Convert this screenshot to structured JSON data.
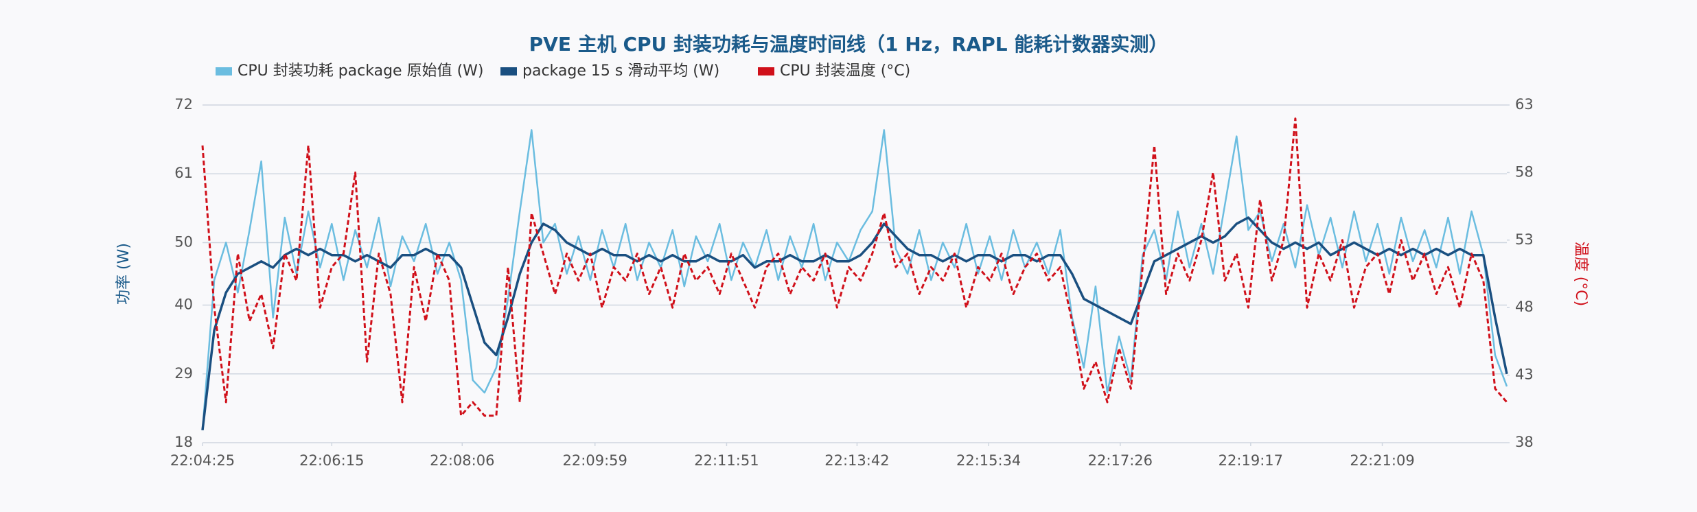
{
  "chart_data": {
    "type": "line",
    "title": "PVE 主机 CPU 封装功耗与温度时间线（1 Hz，RAPL 能耗计数器实测）",
    "ylabel": "功率 (W)",
    "y2label": "温度 (°C)",
    "ylim": [
      18,
      72
    ],
    "yticks": [
      18,
      29,
      40,
      50,
      61,
      72
    ],
    "y2lim": [
      38,
      63
    ],
    "y2ticks": [
      38,
      43,
      48,
      53,
      58,
      63
    ],
    "xlim": [
      "22:04:25",
      "22:22:55"
    ],
    "xticks": [
      "22:04:25",
      "22:06:15",
      "22:08:06",
      "22:09:59",
      "22:11:51",
      "22:13:42",
      "22:15:34",
      "22:17:26",
      "22:19:17",
      "22:21:09"
    ],
    "grid": true,
    "x": [
      "22:04:25",
      "22:04:35",
      "22:04:45",
      "22:04:55",
      "22:05:05",
      "22:05:15",
      "22:05:25",
      "22:05:35",
      "22:05:45",
      "22:05:55",
      "22:06:05",
      "22:06:15",
      "22:06:25",
      "22:06:35",
      "22:06:45",
      "22:06:55",
      "22:07:05",
      "22:07:15",
      "22:07:25",
      "22:07:35",
      "22:07:45",
      "22:07:55",
      "22:08:05",
      "22:08:15",
      "22:08:25",
      "22:08:35",
      "22:08:45",
      "22:08:55",
      "22:09:05",
      "22:09:15",
      "22:09:25",
      "22:09:35",
      "22:09:45",
      "22:09:55",
      "22:10:05",
      "22:10:15",
      "22:10:25",
      "22:10:35",
      "22:10:45",
      "22:10:55",
      "22:11:05",
      "22:11:15",
      "22:11:25",
      "22:11:35",
      "22:11:45",
      "22:11:55",
      "22:12:05",
      "22:12:15",
      "22:12:25",
      "22:12:35",
      "22:12:45",
      "22:12:55",
      "22:13:05",
      "22:13:15",
      "22:13:25",
      "22:13:35",
      "22:13:45",
      "22:13:55",
      "22:14:05",
      "22:14:15",
      "22:14:25",
      "22:14:35",
      "22:14:45",
      "22:14:55",
      "22:15:05",
      "22:15:15",
      "22:15:25",
      "22:15:35",
      "22:15:45",
      "22:15:55",
      "22:16:05",
      "22:16:15",
      "22:16:25",
      "22:16:35",
      "22:16:45",
      "22:16:55",
      "22:17:05",
      "22:17:15",
      "22:17:25",
      "22:17:35",
      "22:17:45",
      "22:17:55",
      "22:18:05",
      "22:18:15",
      "22:18:25",
      "22:18:35",
      "22:18:45",
      "22:18:55",
      "22:19:05",
      "22:19:15",
      "22:19:25",
      "22:19:35",
      "22:19:45",
      "22:19:55",
      "22:20:05",
      "22:20:15",
      "22:20:25",
      "22:20:35",
      "22:20:45",
      "22:20:55",
      "22:21:05",
      "22:21:15",
      "22:21:25",
      "22:21:35",
      "22:21:45",
      "22:21:55",
      "22:22:05",
      "22:22:15",
      "22:22:25",
      "22:22:35",
      "22:22:45",
      "22:22:55"
    ],
    "series": [
      {
        "name": "CPU 封装功耗 package 原始值 (W)",
        "color": "#6bbde0",
        "width": 2.5,
        "dash": false,
        "values": [
          20,
          44,
          50,
          42,
          52,
          63,
          38,
          54,
          45,
          55,
          46,
          53,
          44,
          52,
          46,
          54,
          43,
          51,
          47,
          53,
          45,
          50,
          44,
          28,
          26,
          30,
          41,
          55,
          68,
          50,
          53,
          45,
          51,
          44,
          52,
          46,
          53,
          44,
          50,
          46,
          52,
          43,
          51,
          47,
          53,
          44,
          50,
          46,
          52,
          44,
          51,
          46,
          53,
          44,
          50,
          47,
          52,
          55,
          68,
          49,
          45,
          52,
          44,
          50,
          46,
          53,
          45,
          51,
          44,
          52,
          46,
          50,
          45,
          52,
          38,
          30,
          43,
          26,
          35,
          28,
          48,
          52,
          44,
          55,
          46,
          53,
          45,
          56,
          67,
          52,
          55,
          47,
          53,
          46,
          56,
          48,
          54,
          46,
          55,
          47,
          53,
          45,
          54,
          47,
          52,
          46,
          54,
          45,
          55,
          48,
          32,
          27
        ]
      },
      {
        "name": "package 15 s 滑动平均 (W)",
        "color": "#1a4f80",
        "width": 3.5,
        "dash": false,
        "values": [
          20,
          36,
          42,
          45,
          46,
          47,
          46,
          48,
          49,
          48,
          49,
          48,
          48,
          47,
          48,
          47,
          46,
          48,
          48,
          49,
          48,
          48,
          46,
          40,
          34,
          32,
          38,
          45,
          50,
          53,
          52,
          50,
          49,
          48,
          49,
          48,
          48,
          47,
          48,
          47,
          48,
          47,
          47,
          48,
          47,
          47,
          48,
          46,
          47,
          47,
          48,
          47,
          47,
          48,
          47,
          47,
          48,
          50,
          53,
          51,
          49,
          48,
          48,
          47,
          48,
          47,
          48,
          48,
          47,
          48,
          48,
          47,
          48,
          48,
          45,
          41,
          40,
          39,
          38,
          37,
          42,
          47,
          48,
          49,
          50,
          51,
          50,
          51,
          53,
          54,
          52,
          50,
          49,
          50,
          49,
          50,
          48,
          49,
          50,
          49,
          48,
          49,
          48,
          49,
          48,
          49,
          48,
          49,
          48,
          48,
          38,
          29
        ]
      },
      {
        "name": "CPU 封装温度 (°C)",
        "color": "#d0101a",
        "width": 3,
        "dash": true,
        "axis": "y2",
        "values": [
          60,
          48,
          41,
          52,
          47,
          49,
          45,
          52,
          50,
          60,
          48,
          51,
          52,
          58,
          44,
          52,
          49,
          41,
          51,
          47,
          52,
          50,
          40,
          41,
          40,
          40,
          51,
          41,
          55,
          52,
          49,
          52,
          50,
          52,
          48,
          51,
          50,
          52,
          49,
          51,
          48,
          52,
          50,
          51,
          49,
          52,
          50,
          48,
          51,
          52,
          49,
          51,
          50,
          52,
          48,
          51,
          50,
          52,
          55,
          51,
          52,
          49,
          51,
          50,
          52,
          48,
          51,
          50,
          52,
          49,
          51,
          52,
          50,
          51,
          47,
          42,
          44,
          41,
          45,
          42,
          51,
          60,
          49,
          52,
          50,
          53,
          58,
          50,
          52,
          48,
          56,
          50,
          53,
          62,
          48,
          52,
          50,
          53,
          48,
          51,
          52,
          49,
          53,
          50,
          52,
          49,
          51,
          48,
          52,
          50,
          42,
          41
        ]
      }
    ]
  }
}
